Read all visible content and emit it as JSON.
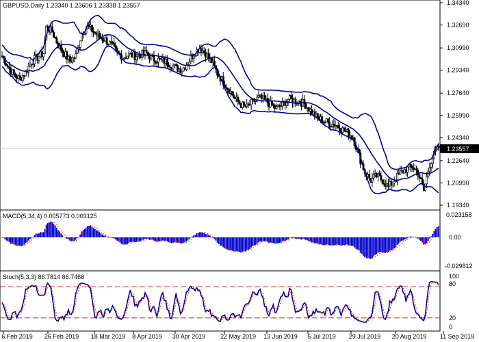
{
  "main": {
    "header": "GBPUSD,Daily  1.23340 1.23606 1.23338 1.23557",
    "price_ticks": [
      "1.34340",
      "1.32690",
      "1.30990",
      "1.29340",
      "1.27640",
      "1.25990",
      "1.24340",
      "1.22640",
      "1.20990",
      "1.19340"
    ],
    "current_price": "1.23557"
  },
  "macd": {
    "header": "MACD(5,34,4) 0.005773 0.003125",
    "ticks": [
      "0.023158",
      "0.00",
      "-0.029812"
    ]
  },
  "stoch": {
    "header": "Stoch(5,3,3) 86.7814 86.7468",
    "ticks": [
      "100",
      "80",
      "20",
      "0"
    ]
  },
  "dates": [
    "6 Feb 2019",
    "26 Feb 2019",
    "18 Mar 2019",
    "8 Apr 2019",
    "30 Apr 2019",
    "22 May 2019",
    "13 Jun 2019",
    "5 Jul 2019",
    "29 Jul 2019",
    "20 Aug 2019",
    "11 Sep 2019"
  ],
  "colors": {
    "bands": "#00008b",
    "candle": "#000000",
    "macd_bars": "#0000cc",
    "signal": "#ff0000",
    "price_line": "#c0c0c0"
  },
  "chart_data": {
    "type": "candlestick",
    "symbol": "GBPUSD",
    "timeframe": "Daily",
    "ylim": [
      1.1934,
      1.3434
    ],
    "close_points": [
      [
        0,
        1.304
      ],
      [
        4,
        1.296
      ],
      [
        8,
        1.29
      ],
      [
        12,
        1.287
      ],
      [
        16,
        1.292
      ],
      [
        20,
        1.3
      ],
      [
        24,
        1.303
      ],
      [
        28,
        1.306
      ],
      [
        30,
        1.325
      ],
      [
        34,
        1.322
      ],
      [
        38,
        1.312
      ],
      [
        42,
        1.306
      ],
      [
        46,
        1.3
      ],
      [
        50,
        1.304
      ],
      [
        54,
        1.321
      ],
      [
        58,
        1.326
      ],
      [
        62,
        1.322
      ],
      [
        66,
        1.318
      ],
      [
        70,
        1.316
      ],
      [
        74,
        1.312
      ],
      [
        78,
        1.306
      ],
      [
        82,
        1.303
      ],
      [
        86,
        1.305
      ],
      [
        90,
        1.304
      ],
      [
        94,
        1.305
      ],
      [
        98,
        1.306
      ],
      [
        102,
        1.302
      ],
      [
        106,
        1.301
      ],
      [
        110,
        1.3
      ],
      [
        114,
        1.298
      ],
      [
        118,
        1.295
      ],
      [
        122,
        1.294
      ],
      [
        126,
        1.299
      ],
      [
        130,
        1.306
      ],
      [
        134,
        1.31
      ],
      [
        138,
        1.306
      ],
      [
        142,
        1.3
      ],
      [
        146,
        1.291
      ],
      [
        150,
        1.285
      ],
      [
        154,
        1.279
      ],
      [
        158,
        1.272
      ],
      [
        162,
        1.268
      ],
      [
        166,
        1.266
      ],
      [
        170,
        1.27
      ],
      [
        174,
        1.273
      ],
      [
        178,
        1.271
      ],
      [
        182,
        1.268
      ],
      [
        186,
        1.265
      ],
      [
        190,
        1.268
      ],
      [
        194,
        1.272
      ],
      [
        198,
        1.271
      ],
      [
        202,
        1.27
      ],
      [
        206,
        1.268
      ],
      [
        210,
        1.262
      ],
      [
        214,
        1.258
      ],
      [
        218,
        1.256
      ],
      [
        222,
        1.254
      ],
      [
        226,
        1.253
      ],
      [
        230,
        1.25
      ],
      [
        234,
        1.247
      ],
      [
        238,
        1.244
      ],
      [
        242,
        1.23
      ],
      [
        246,
        1.218
      ],
      [
        250,
        1.212
      ],
      [
        254,
        1.215
      ],
      [
        258,
        1.212
      ],
      [
        262,
        1.207
      ],
      [
        266,
        1.212
      ],
      [
        270,
        1.217
      ],
      [
        274,
        1.22
      ],
      [
        278,
        1.222
      ],
      [
        282,
        1.218
      ],
      [
        286,
        1.204
      ],
      [
        290,
        1.224
      ],
      [
        294,
        1.233
      ],
      [
        296,
        1.236
      ]
    ],
    "bollinger": [
      "upper",
      "middle",
      "lower"
    ],
    "indicators": {
      "MACD": {
        "fast": 5,
        "slow": 34,
        "signal": 4,
        "main": 0.005773,
        "signal_value": 0.003125,
        "range": [
          -0.029812,
          0.023158
        ]
      },
      "Stochastic": {
        "k": 5,
        "d": 3,
        "slowing": 3,
        "main": 86.7814,
        "signal": 86.7468,
        "levels": [
          20,
          80
        ],
        "range": [
          0,
          100
        ]
      }
    }
  }
}
